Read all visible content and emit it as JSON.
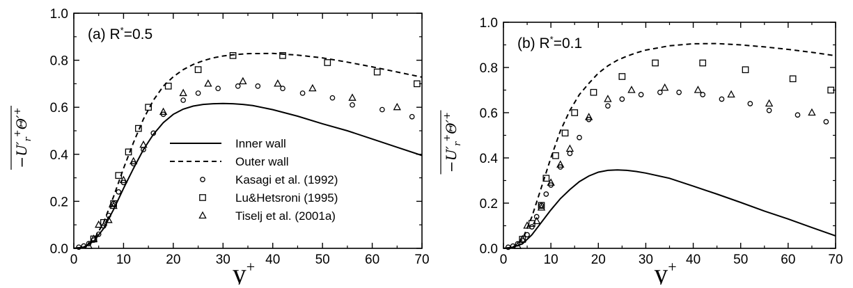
{
  "chart_data": [
    {
      "type": "line",
      "panel_label": "(a) R*=0.5",
      "xlabel": "y+",
      "ylabel": "−U'r+Θ'+ (overlined)",
      "xlim": [
        0,
        70
      ],
      "ylim": [
        0,
        1.0
      ],
      "xticks": [
        "0",
        "10",
        "20",
        "30",
        "40",
        "50",
        "60",
        "70"
      ],
      "yticks": [
        "0.0",
        "0.2",
        "0.4",
        "0.6",
        "0.8",
        "1.0"
      ],
      "legend": {
        "placement": "lower-right",
        "entries": [
          "Inner wall",
          "Outer wall",
          "Kasagi et al. (1992)",
          "Lu&Hetsroni (1995)",
          "Tiselj et al. (2001a)"
        ]
      },
      "series": [
        {
          "name": "Inner wall",
          "style": "solid",
          "x": [
            0,
            2,
            4,
            6,
            8,
            10,
            12,
            14,
            16,
            18,
            20,
            22,
            24,
            26,
            28,
            30,
            32,
            34,
            36,
            40,
            45,
            50,
            55,
            60,
            65,
            70
          ],
          "y": [
            0,
            0.005,
            0.03,
            0.085,
            0.165,
            0.255,
            0.34,
            0.42,
            0.485,
            0.535,
            0.57,
            0.592,
            0.605,
            0.612,
            0.615,
            0.616,
            0.615,
            0.612,
            0.607,
            0.59,
            0.562,
            0.53,
            0.5,
            0.465,
            0.43,
            0.395
          ]
        },
        {
          "name": "Outer wall",
          "style": "dashed",
          "x": [
            0,
            2,
            4,
            6,
            8,
            10,
            12,
            14,
            16,
            18,
            20,
            22,
            24,
            26,
            28,
            30,
            32,
            35,
            40,
            45,
            50,
            55,
            60,
            65,
            70
          ],
          "y": [
            0,
            0.005,
            0.035,
            0.11,
            0.22,
            0.34,
            0.45,
            0.55,
            0.63,
            0.69,
            0.73,
            0.76,
            0.782,
            0.798,
            0.81,
            0.818,
            0.823,
            0.828,
            0.829,
            0.822,
            0.81,
            0.792,
            0.772,
            0.75,
            0.728
          ]
        },
        {
          "name": "Kasagi et al. (1992)",
          "marker": "circle",
          "x": [
            1,
            2,
            3,
            4,
            5,
            6,
            7,
            8,
            9,
            10,
            12,
            14,
            16,
            18,
            22,
            25,
            29,
            33,
            37,
            42,
            46,
            52,
            56,
            62,
            68
          ],
          "y": [
            0.005,
            0.01,
            0.02,
            0.035,
            0.06,
            0.095,
            0.14,
            0.19,
            0.24,
            0.28,
            0.36,
            0.42,
            0.49,
            0.57,
            0.63,
            0.66,
            0.68,
            0.69,
            0.69,
            0.68,
            0.66,
            0.64,
            0.61,
            0.59,
            0.56
          ]
        },
        {
          "name": "Lu&Hetsroni (1995)",
          "marker": "square",
          "x": [
            4,
            6,
            8,
            9,
            11,
            13,
            15,
            19,
            25,
            32,
            42,
            51,
            61,
            69
          ],
          "y": [
            0.04,
            0.11,
            0.19,
            0.31,
            0.41,
            0.51,
            0.6,
            0.69,
            0.76,
            0.82,
            0.82,
            0.79,
            0.75,
            0.7
          ]
        },
        {
          "name": "Tiselj et al. (2001a)",
          "marker": "triangle",
          "x": [
            3,
            4,
            5,
            7,
            8,
            10,
            12,
            14,
            18,
            22,
            27,
            34,
            41,
            48,
            56,
            65
          ],
          "y": [
            0.01,
            0.04,
            0.1,
            0.12,
            0.18,
            0.29,
            0.37,
            0.44,
            0.58,
            0.66,
            0.7,
            0.71,
            0.7,
            0.68,
            0.64,
            0.6
          ]
        }
      ]
    },
    {
      "type": "line",
      "panel_label": "(b) R*=0.1",
      "xlabel": "y+",
      "ylabel": "−U'r+Θ'+ (overlined)",
      "xlim": [
        0,
        70
      ],
      "ylim": [
        0,
        1.0
      ],
      "xticks": [
        "0",
        "10",
        "20",
        "30",
        "40",
        "50",
        "60",
        "70"
      ],
      "yticks": [
        "0.0",
        "0.2",
        "0.4",
        "0.6",
        "0.8",
        "1.0"
      ],
      "series": [
        {
          "name": "Inner wall",
          "style": "solid",
          "x": [
            0,
            2,
            4,
            6,
            8,
            10,
            12,
            14,
            16,
            18,
            20,
            22,
            24,
            26,
            28,
            30,
            35,
            40,
            45,
            50,
            55,
            60,
            65,
            70
          ],
          "y": [
            0,
            0.005,
            0.02,
            0.06,
            0.115,
            0.17,
            0.22,
            0.26,
            0.295,
            0.32,
            0.337,
            0.345,
            0.347,
            0.345,
            0.34,
            0.333,
            0.31,
            0.275,
            0.24,
            0.203,
            0.165,
            0.13,
            0.092,
            0.055
          ]
        },
        {
          "name": "Outer wall",
          "style": "dashed",
          "x": [
            0,
            2,
            4,
            6,
            8,
            10,
            12,
            14,
            16,
            18,
            20,
            22,
            24,
            26,
            28,
            30,
            35,
            40,
            45,
            50,
            55,
            60,
            65,
            70
          ],
          "y": [
            0,
            0.005,
            0.04,
            0.14,
            0.27,
            0.4,
            0.52,
            0.61,
            0.68,
            0.73,
            0.775,
            0.807,
            0.832,
            0.85,
            0.865,
            0.877,
            0.896,
            0.905,
            0.906,
            0.9,
            0.891,
            0.88,
            0.867,
            0.852
          ]
        },
        {
          "name": "Kasagi et al. (1992)",
          "marker": "circle",
          "x": [
            1,
            2,
            3,
            4,
            5,
            6,
            7,
            8,
            9,
            10,
            12,
            14,
            16,
            18,
            22,
            25,
            29,
            33,
            37,
            42,
            46,
            52,
            56,
            62,
            68
          ],
          "y": [
            0.005,
            0.01,
            0.02,
            0.035,
            0.06,
            0.095,
            0.14,
            0.19,
            0.24,
            0.28,
            0.36,
            0.42,
            0.49,
            0.57,
            0.63,
            0.66,
            0.68,
            0.69,
            0.69,
            0.68,
            0.66,
            0.64,
            0.61,
            0.59,
            0.56
          ]
        },
        {
          "name": "Lu&Hetsroni (1995)",
          "marker": "square",
          "x": [
            4,
            6,
            8,
            9,
            11,
            13,
            15,
            19,
            25,
            32,
            42,
            51,
            61,
            69
          ],
          "y": [
            0.04,
            0.11,
            0.19,
            0.31,
            0.41,
            0.51,
            0.6,
            0.69,
            0.76,
            0.82,
            0.82,
            0.79,
            0.75,
            0.7
          ]
        },
        {
          "name": "Tiselj et al. (2001a)",
          "marker": "triangle",
          "x": [
            3,
            4,
            5,
            7,
            8,
            10,
            12,
            14,
            18,
            22,
            27,
            34,
            41,
            48,
            56,
            65
          ],
          "y": [
            0.01,
            0.04,
            0.1,
            0.12,
            0.18,
            0.29,
            0.37,
            0.44,
            0.58,
            0.66,
            0.7,
            0.71,
            0.7,
            0.68,
            0.64,
            0.6
          ]
        }
      ]
    }
  ]
}
